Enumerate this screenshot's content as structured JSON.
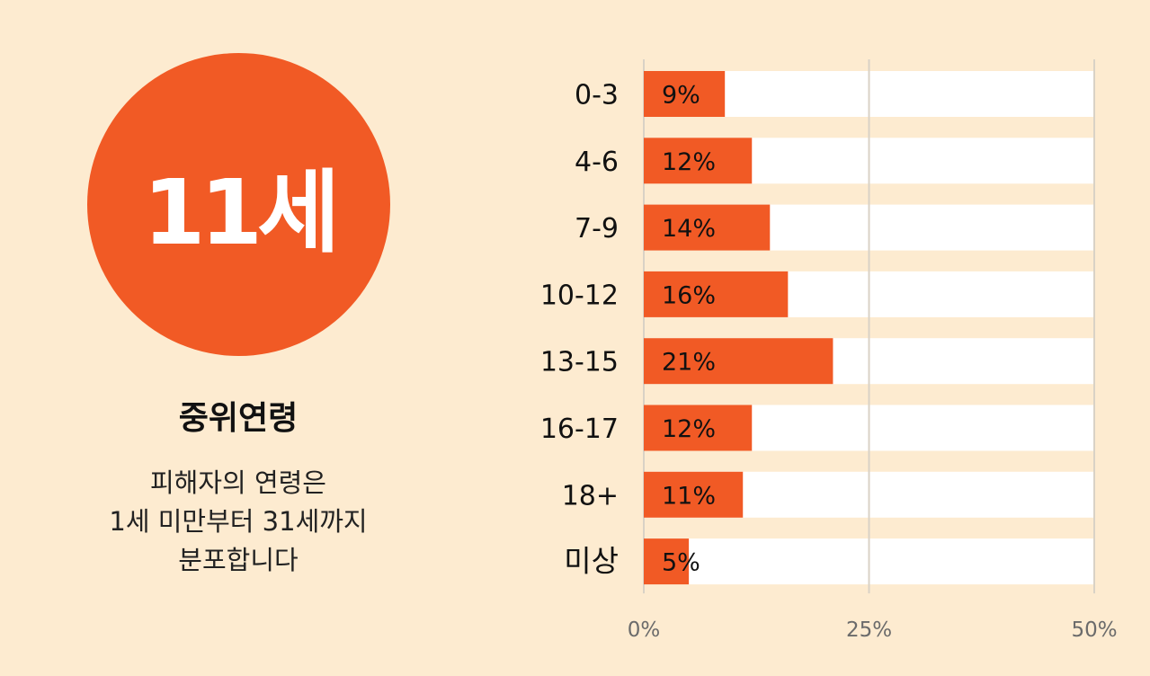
{
  "headline": {
    "value": "11세",
    "label": "중위연령",
    "description": [
      "피해자의 연령은",
      "1세 미만부터 31세까지",
      "분포합니다"
    ]
  },
  "colors": {
    "accent": "#f15a25",
    "background": "#fdebd0",
    "track": "#ffffff"
  },
  "chart_data": {
    "type": "bar",
    "orientation": "horizontal",
    "categories": [
      "0-3",
      "4-6",
      "7-9",
      "10-12",
      "13-15",
      "16-17",
      "18+",
      "미상"
    ],
    "values": [
      9,
      12,
      14,
      16,
      21,
      12,
      11,
      5
    ],
    "value_labels": [
      "9%",
      "12%",
      "14%",
      "16%",
      "21%",
      "12%",
      "11%",
      "5%"
    ],
    "xlim": [
      0,
      50
    ],
    "xticks": [
      0,
      25,
      50
    ],
    "xtick_labels": [
      "0%",
      "25%",
      "50%"
    ],
    "grid": true
  }
}
